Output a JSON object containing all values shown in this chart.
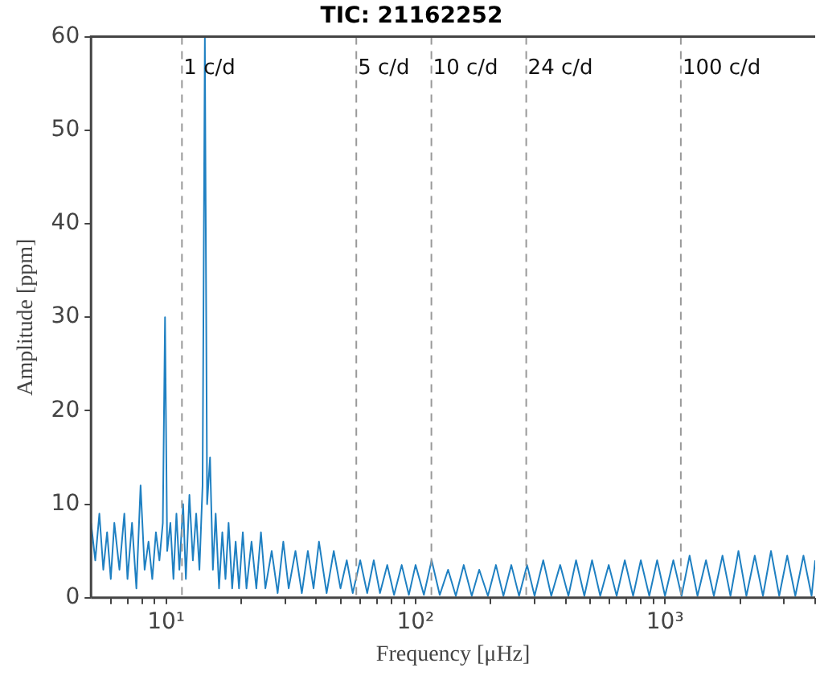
{
  "chart_data": {
    "type": "line",
    "title": "TIC: 21162252",
    "xlabel": "Frequency [μHz]",
    "ylabel": "Amplitude [ppm]",
    "log": "x",
    "grid": false,
    "legend": false,
    "marker": "none",
    "line_style": "solid",
    "xlim": [
      5,
      4000
    ],
    "ylim": [
      0,
      60
    ],
    "xticks": [
      {
        "value": 6,
        "label": null
      },
      {
        "value": 7,
        "label": null
      },
      {
        "value": 8,
        "label": null
      },
      {
        "value": 9,
        "label": null
      },
      {
        "value": 10,
        "label": "10¹"
      },
      {
        "value": 20,
        "label": null
      },
      {
        "value": 30,
        "label": null
      },
      {
        "value": 40,
        "label": null
      },
      {
        "value": 50,
        "label": null
      },
      {
        "value": 60,
        "label": null
      },
      {
        "value": 70,
        "label": null
      },
      {
        "value": 80,
        "label": null
      },
      {
        "value": 90,
        "label": null
      },
      {
        "value": 100,
        "label": "10²"
      },
      {
        "value": 200,
        "label": null
      },
      {
        "value": 300,
        "label": null
      },
      {
        "value": 400,
        "label": null
      },
      {
        "value": 500,
        "label": null
      },
      {
        "value": 600,
        "label": null
      },
      {
        "value": 700,
        "label": null
      },
      {
        "value": 800,
        "label": null
      },
      {
        "value": 900,
        "label": null
      },
      {
        "value": 1000,
        "label": "10³"
      },
      {
        "value": 2000,
        "label": null
      },
      {
        "value": 3000,
        "label": null
      },
      {
        "value": 4000,
        "label": null
      }
    ],
    "yticks": [
      0,
      10,
      20,
      30,
      40,
      50,
      60
    ],
    "ref_lines": [
      {
        "axis": "x",
        "value": 11.574,
        "label": "1 c/d",
        "color": "#999999",
        "line_style": "dashed"
      },
      {
        "axis": "x",
        "value": 57.87,
        "label": "5 c/d",
        "color": "#999999",
        "line_style": "dashed"
      },
      {
        "axis": "x",
        "value": 115.74,
        "label": "10 c/d",
        "color": "#999999",
        "line_style": "dashed"
      },
      {
        "axis": "x",
        "value": 277.78,
        "label": "24 c/d",
        "color": "#999999",
        "line_style": "dashed"
      },
      {
        "axis": "x",
        "value": 1157.4,
        "label": "100 c/d",
        "color": "#999999",
        "line_style": "dashed"
      }
    ],
    "series": [
      {
        "color": "#1f80c2",
        "x": [
          5.0,
          5.2,
          5.4,
          5.6,
          5.8,
          6.0,
          6.2,
          6.5,
          6.8,
          7.0,
          7.3,
          7.6,
          7.9,
          8.2,
          8.5,
          8.8,
          9.1,
          9.4,
          9.7,
          9.9,
          10.1,
          10.4,
          10.7,
          11.0,
          11.3,
          11.7,
          12.0,
          12.4,
          12.8,
          13.2,
          13.6,
          14.0,
          14.3,
          14.6,
          15.0,
          15.4,
          15.8,
          16.3,
          16.8,
          17.3,
          17.8,
          18.4,
          19,
          19.6,
          20.3,
          21,
          22,
          23,
          24,
          25,
          26.5,
          28,
          29.5,
          31,
          33,
          35,
          37,
          39,
          41,
          44,
          47,
          50,
          53,
          56,
          60,
          64,
          68,
          72,
          77,
          82,
          88,
          94,
          100,
          108,
          116,
          125,
          135,
          145,
          156,
          168,
          180,
          195,
          210,
          225,
          242,
          260,
          280,
          300,
          325,
          350,
          380,
          410,
          440,
          475,
          510,
          550,
          595,
          640,
          690,
          745,
          800,
          865,
          930,
          1000,
          1080,
          1165,
          1255,
          1350,
          1460,
          1570,
          1700,
          1830,
          1970,
          2120,
          2290,
          2470,
          2660,
          2870,
          3090,
          3330,
          3590,
          3870,
          4000
        ],
        "values": [
          8,
          4,
          9,
          3,
          7,
          2,
          8,
          3,
          9,
          2,
          8,
          1,
          12,
          3,
          6,
          2,
          7,
          4,
          8,
          30,
          5,
          8,
          2,
          9,
          3,
          10,
          2,
          11,
          4,
          9,
          3,
          12,
          60,
          10,
          15,
          3,
          9,
          1,
          7,
          2,
          8,
          1,
          6,
          1,
          7,
          1,
          6,
          1,
          7,
          1,
          5,
          0.5,
          6,
          1,
          5,
          0.5,
          5,
          1,
          6,
          0.5,
          5,
          1,
          4,
          0.5,
          4,
          0.5,
          4,
          0.5,
          3.5,
          0.3,
          3.5,
          0.3,
          3.5,
          0.3,
          4,
          0.3,
          3,
          0.2,
          3.5,
          0.2,
          3,
          0.2,
          3.5,
          0.2,
          3.5,
          0.2,
          3.5,
          0.2,
          4,
          0.2,
          3.5,
          0.2,
          4,
          0.2,
          4,
          0.2,
          3.5,
          0.2,
          4,
          0.2,
          4,
          0.2,
          4,
          0.2,
          4,
          0.2,
          4.5,
          0.2,
          4,
          0.2,
          4.5,
          0.2,
          5,
          0.2,
          4.5,
          0.2,
          5,
          0.2,
          4.5,
          0.2,
          4.5,
          0.2,
          4
        ]
      }
    ]
  }
}
